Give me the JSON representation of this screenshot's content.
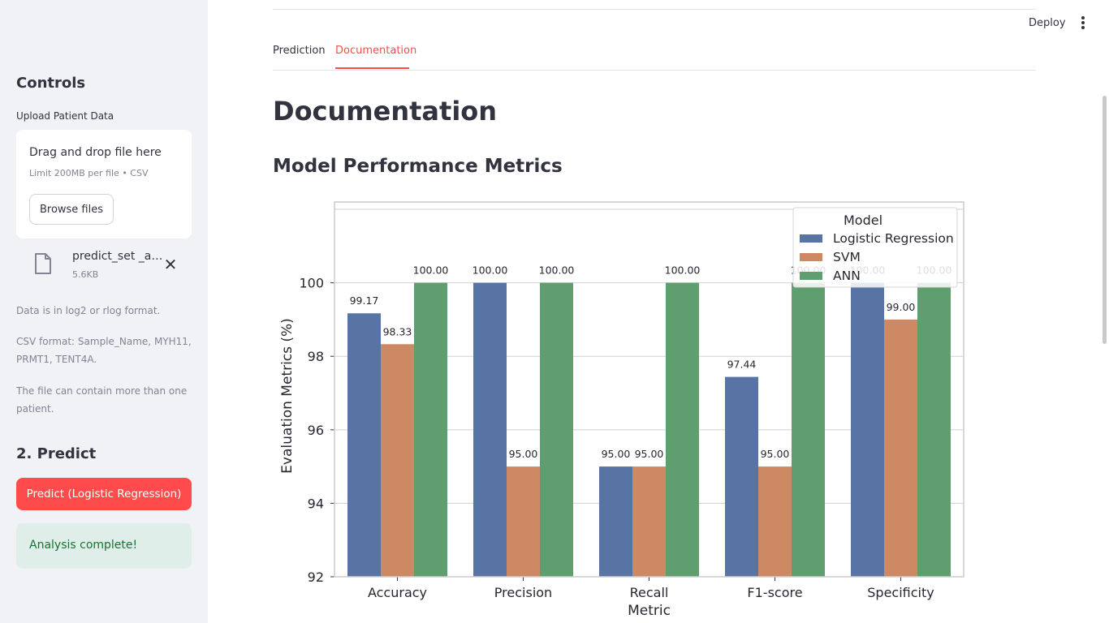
{
  "sidebar": {
    "title": "Controls",
    "upload_label": "Upload Patient Data",
    "dropzone_title": "Drag and drop file here",
    "dropzone_limit": "Limit 200MB per file • CSV",
    "browse_label": "Browse files",
    "file_name": "predict_set _all_samples.csv",
    "file_size": "5.6KB",
    "info_1": "Data is in log2 or rlog format.",
    "info_2": "CSV format: Sample_Name, MYH11, PRMT1, TENT4A.",
    "info_3": "The file can contain more than one patient.",
    "predict_heading": "2. Predict",
    "predict_button": "Predict (Logistic Regression)",
    "success_message": "Analysis complete!"
  },
  "header": {
    "deploy_label": "Deploy"
  },
  "tabs": [
    {
      "label": "Prediction",
      "active": false
    },
    {
      "label": "Documentation",
      "active": true
    }
  ],
  "main": {
    "title": "Documentation",
    "section_title": "Model Performance Metrics"
  },
  "chart_data": {
    "type": "bar",
    "title": "",
    "xlabel": "Metric",
    "ylabel": "Evaluation Metrics (%)",
    "ylim": [
      92,
      102.2
    ],
    "yticks": [
      92,
      94,
      96,
      98,
      100
    ],
    "grid": true,
    "legend_title": "Model",
    "legend_position": "top-right",
    "categories": [
      "Accuracy",
      "Precision",
      "Recall",
      "F1-score",
      "Specificity"
    ],
    "series": [
      {
        "name": "Logistic Regression",
        "color": "#5874a4",
        "values": [
          99.17,
          100.0,
          95.0,
          97.44,
          100.0
        ],
        "labels": [
          "99.17",
          "100.00",
          "95.00",
          "97.44",
          "100.00"
        ]
      },
      {
        "name": "SVM",
        "color": "#cc8963",
        "values": [
          98.33,
          95.0,
          95.0,
          95.0,
          99.0
        ],
        "labels": [
          "98.33",
          "95.00",
          "95.00",
          "95.00",
          "99.00"
        ]
      },
      {
        "name": "ANN",
        "color": "#5f9e6e",
        "values": [
          100.0,
          100.0,
          100.0,
          100.0,
          100.0
        ],
        "labels": [
          "100.00",
          "100.00",
          "100.00",
          "100.00",
          "100.00"
        ]
      }
    ]
  }
}
